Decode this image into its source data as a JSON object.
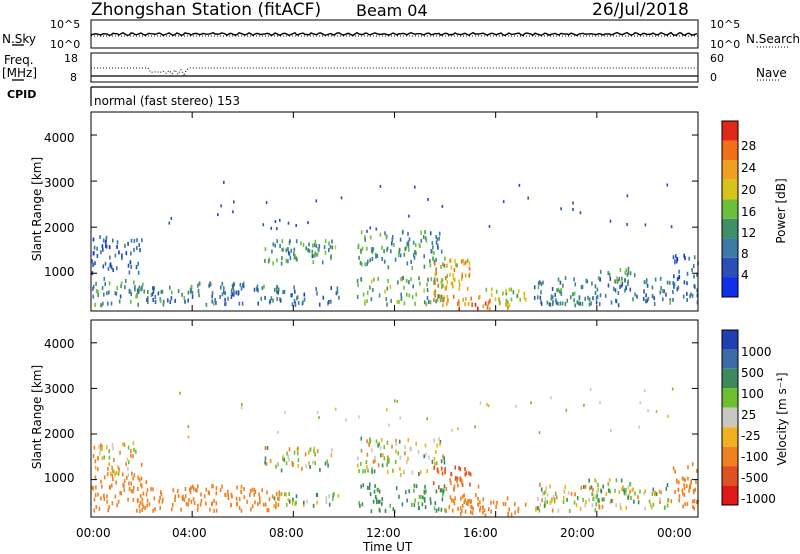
{
  "header": {
    "station": "Zhongshan Station (fitACF)",
    "beam": "Beam 04",
    "date": "26/Jul/2018"
  },
  "summary_panels": {
    "sky_label": "N.Sky",
    "search_label": "N.Search",
    "freq_label_1": "Freq.",
    "freq_label_2": "[MHz]",
    "nave_label": "Nave",
    "cpid_label": "CPID",
    "cpid_text": "normal (fast stereo) 153",
    "sky_ticks_left": [
      "10^5",
      "10^0"
    ],
    "sky_ticks_right": [
      "10^5",
      "10^0"
    ],
    "freq_ticks_left": [
      "18",
      "8"
    ],
    "freq_ticks_right": [
      "60",
      "0"
    ]
  },
  "axes": {
    "ylabel": "Slant Range [km]",
    "xlabel": "Time UT",
    "xticks": [
      "00:00",
      "04:00",
      "08:00",
      "12:00",
      "16:00",
      "20:00",
      "00:00"
    ],
    "yticks": [
      "1000",
      "2000",
      "3000",
      "4000"
    ]
  },
  "colorbars": {
    "power": {
      "label": "Power [dB]",
      "ticks": [
        "4",
        "8",
        "12",
        "16",
        "20",
        "24",
        "28"
      ],
      "colors": [
        "#1030e8",
        "#2a4fb8",
        "#3c7aa6",
        "#3f8f6a",
        "#6cbf3a",
        "#d8c418",
        "#f0a020",
        "#ef7018",
        "#e02818"
      ]
    },
    "velocity": {
      "label": "Velocity [m s⁻¹]",
      "ticks": [
        "1000",
        "500",
        "100",
        "25",
        "-25",
        "-100",
        "-500",
        "-1000"
      ],
      "colors": [
        "#2040b0",
        "#3a6aa8",
        "#3c8a5a",
        "#6cc030",
        "#c8c8c0",
        "#f0b020",
        "#f08020",
        "#e05020",
        "#e01818"
      ]
    }
  },
  "chart_data": [
    {
      "type": "heatmap",
      "title": "Power",
      "x": [
        "00:00",
        "04:00",
        "08:00",
        "12:00",
        "16:00",
        "20:00",
        "00:00"
      ],
      "xlabel": "Time UT",
      "ylabel": "Slant Range [km]",
      "xlim": [
        0,
        24
      ],
      "ylim": [
        180,
        4500
      ],
      "colorbar_label": "Power [dB]",
      "colorbar_range": [
        0,
        32
      ],
      "echo_regions": [
        {
          "t_start": 0.0,
          "t_end": 2.3,
          "r_start": 300,
          "r_end": 900,
          "level": 12
        },
        {
          "t_start": 0.0,
          "t_end": 2.0,
          "r_start": 1000,
          "r_end": 1800,
          "level": 6
        },
        {
          "t_start": 1.8,
          "t_end": 4.0,
          "r_start": 300,
          "r_end": 700,
          "level": 10
        },
        {
          "t_start": 3.8,
          "t_end": 6.0,
          "r_start": 300,
          "r_end": 800,
          "level": 10
        },
        {
          "t_start": 5.5,
          "t_end": 7.5,
          "r_start": 300,
          "r_end": 800,
          "level": 10
        },
        {
          "t_start": 6.8,
          "t_end": 9.5,
          "r_start": 1200,
          "r_end": 1700,
          "level": 12
        },
        {
          "t_start": 7.2,
          "t_end": 9.8,
          "r_start": 300,
          "r_end": 700,
          "level": 8
        },
        {
          "t_start": 8.5,
          "t_end": 9.7,
          "r_start": 1400,
          "r_end": 1700,
          "level": 14
        },
        {
          "t_start": 10.5,
          "t_end": 14.0,
          "r_start": 1100,
          "r_end": 1900,
          "level": 12
        },
        {
          "t_start": 10.5,
          "t_end": 14.0,
          "r_start": 300,
          "r_end": 900,
          "level": 14
        },
        {
          "t_start": 13.5,
          "t_end": 15.0,
          "r_start": 300,
          "r_end": 1300,
          "level": 22
        },
        {
          "t_start": 14.5,
          "t_end": 16.5,
          "r_start": 200,
          "r_end": 500,
          "level": 26
        },
        {
          "t_start": 15.5,
          "t_end": 17.2,
          "r_start": 300,
          "r_end": 650,
          "level": 18
        },
        {
          "t_start": 17.5,
          "t_end": 23.0,
          "r_start": 300,
          "r_end": 900,
          "level": 10
        },
        {
          "t_start": 20.0,
          "t_end": 21.5,
          "r_start": 800,
          "r_end": 1100,
          "level": 14
        },
        {
          "t_start": 23.0,
          "t_end": 24.0,
          "r_start": 300,
          "r_end": 1400,
          "level": 8
        }
      ]
    },
    {
      "type": "heatmap",
      "title": "Velocity",
      "x": [
        "00:00",
        "04:00",
        "08:00",
        "12:00",
        "16:00",
        "20:00",
        "00:00"
      ],
      "xlabel": "Time UT",
      "ylabel": "Slant Range [km]",
      "xlim": [
        0,
        24
      ],
      "ylim": [
        180,
        4500
      ],
      "colorbar_label": "Velocity [m s⁻¹]",
      "colorbar_range": [
        -1000,
        1000
      ],
      "echo_regions": [
        {
          "t_start": 0.0,
          "t_end": 2.3,
          "r_start": 300,
          "r_end": 1100,
          "level": -300
        },
        {
          "t_start": 0.0,
          "t_end": 2.0,
          "r_start": 1100,
          "r_end": 1800,
          "level": -60
        },
        {
          "t_start": 1.8,
          "t_end": 4.0,
          "r_start": 300,
          "r_end": 800,
          "level": -300
        },
        {
          "t_start": 3.8,
          "t_end": 6.0,
          "r_start": 300,
          "r_end": 900,
          "level": -300
        },
        {
          "t_start": 5.5,
          "t_end": 7.5,
          "r_start": 300,
          "r_end": 800,
          "level": -250
        },
        {
          "t_start": 6.8,
          "t_end": 9.5,
          "r_start": 1200,
          "r_end": 1700,
          "level": 0
        },
        {
          "t_start": 7.2,
          "t_end": 9.8,
          "r_start": 400,
          "r_end": 700,
          "level": 60
        },
        {
          "t_start": 10.5,
          "t_end": 14.0,
          "r_start": 1100,
          "r_end": 1900,
          "level": 0
        },
        {
          "t_start": 10.5,
          "t_end": 14.0,
          "r_start": 300,
          "r_end": 900,
          "level": 200
        },
        {
          "t_start": 13.5,
          "t_end": 15.0,
          "r_start": 800,
          "r_end": 1300,
          "level": -700
        },
        {
          "t_start": 14.0,
          "t_end": 15.3,
          "r_start": 300,
          "r_end": 1000,
          "level": -300
        },
        {
          "t_start": 14.5,
          "t_end": 17.2,
          "r_start": 200,
          "r_end": 600,
          "level": -350
        },
        {
          "t_start": 17.5,
          "t_end": 23.0,
          "r_start": 300,
          "r_end": 900,
          "level": 0
        },
        {
          "t_start": 19.5,
          "t_end": 21.5,
          "r_start": 500,
          "r_end": 1000,
          "level": 60
        },
        {
          "t_start": 23.0,
          "t_end": 24.0,
          "r_start": 300,
          "r_end": 1400,
          "level": -300
        }
      ]
    }
  ]
}
